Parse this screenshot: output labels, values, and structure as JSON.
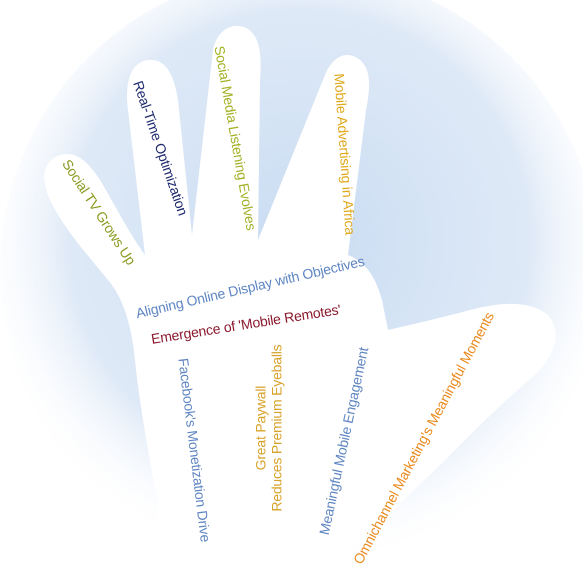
{
  "colors": {
    "background_glow": "#c9dcf2",
    "hand_fill": "#ffffff",
    "label_green": "#8a9a1f",
    "label_navy": "#1f2a6e",
    "label_lime": "#a3b126",
    "label_yellow": "#e0a81c",
    "label_blue": "#5f86c2",
    "label_maroon": "#8b1a2e",
    "label_gold": "#d8a32a",
    "label_orange": "#ea8a1e"
  },
  "fingers": {
    "pinky": "Social TV Grows Up",
    "ring": "Real-Time Optimization",
    "middle": "Social Media Listening Evolves",
    "index": "Mobile Advertising in Africa"
  },
  "palm": {
    "line1": "Aligning Online Display with Objectives",
    "line2": "Emergence of 'Mobile Remotes'",
    "facebook": "Facebook's Monetization Drive",
    "paywall_line1": "Great Paywall",
    "paywall_line2": "Reduces Premium Eyeballs",
    "mobile_engagement": "Meaningful Mobile Engagement"
  },
  "thumb": {
    "omnichannel": "Omnichannel Marketing's Meaningful Moments"
  }
}
